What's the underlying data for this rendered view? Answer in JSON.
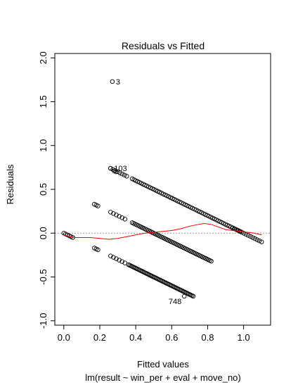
{
  "chart_data": {
    "type": "scatter",
    "title": "Residuals vs Fitted",
    "xlabel": "Fitted values",
    "sublabel": "lm(result ~ win_per + eval + move_no)",
    "ylabel": "Residuals",
    "xlim": [
      -0.05,
      1.15
    ],
    "ylim": [
      -1.05,
      2.05
    ],
    "x_ticks": [
      0.0,
      0.2,
      0.4,
      0.6,
      0.8,
      1.0
    ],
    "x_tick_labels": [
      "0.0",
      "0.2",
      "0.4",
      "0.6",
      "0.8",
      "1.0"
    ],
    "y_ticks": [
      -1.0,
      -0.5,
      0.0,
      0.5,
      1.0,
      1.5,
      2.0
    ],
    "y_tick_labels": [
      "-1.0",
      "-0.5",
      "0.0",
      "0.5",
      "1.0",
      "1.5",
      "2.0"
    ],
    "reference_line_y": 0,
    "reference_line_color": "#999999",
    "smooth_color": "#ff0000",
    "point_color": "#000000",
    "band_segments": [
      {
        "x0": 0.0,
        "x1": 0.05,
        "intercept": 0.0,
        "slope": -1.0,
        "n": 6
      },
      {
        "x0": 0.17,
        "x1": 0.19,
        "intercept": 0.5,
        "slope": -1.0,
        "n": 3
      },
      {
        "x0": 0.17,
        "x1": 0.19,
        "intercept": -0.0,
        "slope": -1.0,
        "n": 3
      },
      {
        "x0": 0.26,
        "x1": 0.35,
        "intercept": 1.0,
        "slope": -1.0,
        "n": 8
      },
      {
        "x0": 0.38,
        "x1": 0.98,
        "intercept": 1.0,
        "slope": -1.0,
        "n": 60
      },
      {
        "x0": 0.26,
        "x1": 0.34,
        "intercept": 0.5,
        "slope": -1.0,
        "n": 6
      },
      {
        "x0": 0.38,
        "x1": 0.82,
        "intercept": 0.5,
        "slope": -1.0,
        "n": 55
      },
      {
        "x0": 0.94,
        "x1": 1.1,
        "intercept": 1.0,
        "slope": -1.0,
        "n": 14
      },
      {
        "x0": 0.26,
        "x1": 0.34,
        "intercept": 0.0,
        "slope": -1.0,
        "n": 6
      },
      {
        "x0": 0.36,
        "x1": 0.72,
        "intercept": 0.0,
        "slope": -1.0,
        "n": 55
      }
    ],
    "points": [
      {
        "x": 0.27,
        "y": 1.73,
        "label": "3"
      },
      {
        "x": 0.26,
        "y": 0.74,
        "label": "103"
      },
      {
        "x": 0.67,
        "y": -0.72,
        "label": "748"
      },
      {
        "x": 0.28,
        "y": 0.71,
        "label": ""
      },
      {
        "x": 0.29,
        "y": 0.7,
        "label": ""
      }
    ],
    "smooth": [
      [
        0.0,
        -0.02
      ],
      [
        0.03,
        -0.04
      ],
      [
        0.06,
        -0.05
      ],
      [
        0.1,
        -0.05
      ],
      [
        0.15,
        -0.05
      ],
      [
        0.2,
        -0.06
      ],
      [
        0.25,
        -0.07
      ],
      [
        0.3,
        -0.06
      ],
      [
        0.35,
        -0.04
      ],
      [
        0.4,
        -0.02
      ],
      [
        0.45,
        0.0
      ],
      [
        0.5,
        0.01
      ],
      [
        0.55,
        0.02
      ],
      [
        0.6,
        0.03
      ],
      [
        0.65,
        0.05
      ],
      [
        0.7,
        0.08
      ],
      [
        0.75,
        0.1
      ],
      [
        0.78,
        0.11
      ],
      [
        0.82,
        0.1
      ],
      [
        0.86,
        0.07
      ],
      [
        0.9,
        0.04
      ],
      [
        0.94,
        0.03
      ],
      [
        0.98,
        0.02
      ],
      [
        1.02,
        0.01
      ],
      [
        1.06,
        0.0
      ],
      [
        1.1,
        -0.02
      ]
    ]
  }
}
